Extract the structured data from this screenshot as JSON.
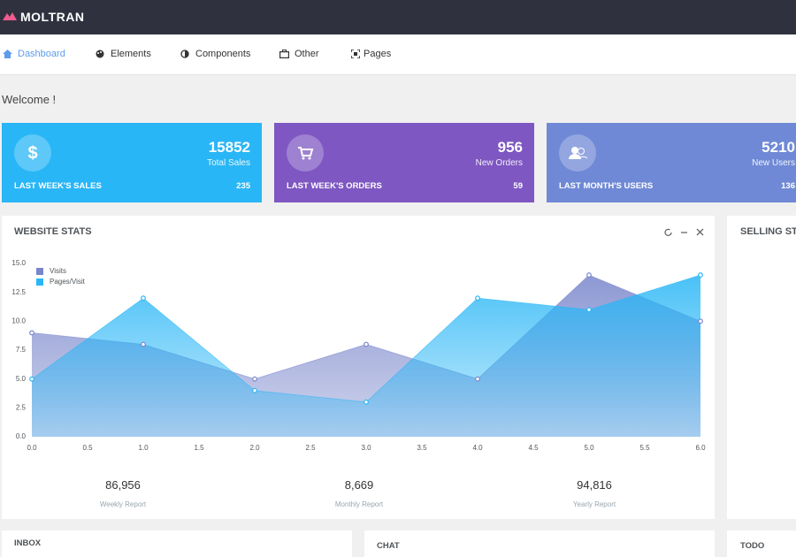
{
  "header": {
    "brand": "MOLTRAN"
  },
  "nav": [
    "Dashboard",
    "Elements",
    "Components",
    "Other",
    "Pages"
  ],
  "welcome": "Welcome !",
  "cards": [
    {
      "value": 15852,
      "label": "Total Sales",
      "footer_label": "LAST WEEK'S SALES",
      "footer_value": 235
    },
    {
      "value": 956,
      "label": "New Orders",
      "footer_label": "LAST WEEK'S ORDERS",
      "footer_value": 59
    },
    {
      "value": 5210,
      "label": "New Users",
      "footer_label": "LAST MONTH'S USERS",
      "footer_value": 136
    }
  ],
  "website_stats": {
    "title": "WEBSITE STATS",
    "summary": [
      {
        "value": "86,956",
        "label": "Weekly Report"
      },
      {
        "value": "8,669",
        "label": "Monthly Report"
      },
      {
        "value": "94,816",
        "label": "Yearly Report"
      }
    ]
  },
  "chart_data": {
    "type": "area",
    "x": [
      0,
      1,
      2,
      3,
      4,
      5,
      6
    ],
    "series": [
      {
        "name": "Visits",
        "color": "#7986cb",
        "values": [
          9,
          8,
          5,
          8,
          5,
          14,
          10
        ]
      },
      {
        "name": "Pages/Visit",
        "color": "#29b6f6",
        "values": [
          5,
          12,
          4,
          3,
          12,
          11,
          14
        ]
      }
    ],
    "xlim": [
      0,
      6
    ],
    "ylim": [
      0,
      15
    ],
    "xticks": [
      {
        "value": 0,
        "label": "0.0"
      },
      {
        "value": 0.5,
        "label": "0.5"
      },
      {
        "value": 1,
        "label": "1.0"
      },
      {
        "value": 1.5,
        "label": "1.5"
      },
      {
        "value": 2,
        "label": "2.0"
      },
      {
        "value": 2.5,
        "label": "2.5"
      },
      {
        "value": 3,
        "label": "3.0"
      },
      {
        "value": 3.5,
        "label": "3.5"
      },
      {
        "value": 4,
        "label": "4.0"
      },
      {
        "value": 4.5,
        "label": "4.5"
      },
      {
        "value": 5,
        "label": "5.0"
      },
      {
        "value": 5.5,
        "label": "5.5"
      },
      {
        "value": 6,
        "label": "6.0"
      }
    ],
    "yticks": [
      {
        "value": 0,
        "label": "0.0"
      },
      {
        "value": 2.5,
        "label": "2.5"
      },
      {
        "value": 5,
        "label": "5.0"
      },
      {
        "value": 7.5,
        "label": "7.5"
      },
      {
        "value": 10,
        "label": "10.0"
      },
      {
        "value": 12.5,
        "label": "12.5"
      },
      {
        "value": 15,
        "label": "15.0"
      }
    ],
    "grid": false,
    "legend": "top-left"
  },
  "selling_stats": {
    "title": "SELLING STATS"
  },
  "panels": [
    "INBOX",
    "CHAT",
    "TODO"
  ]
}
